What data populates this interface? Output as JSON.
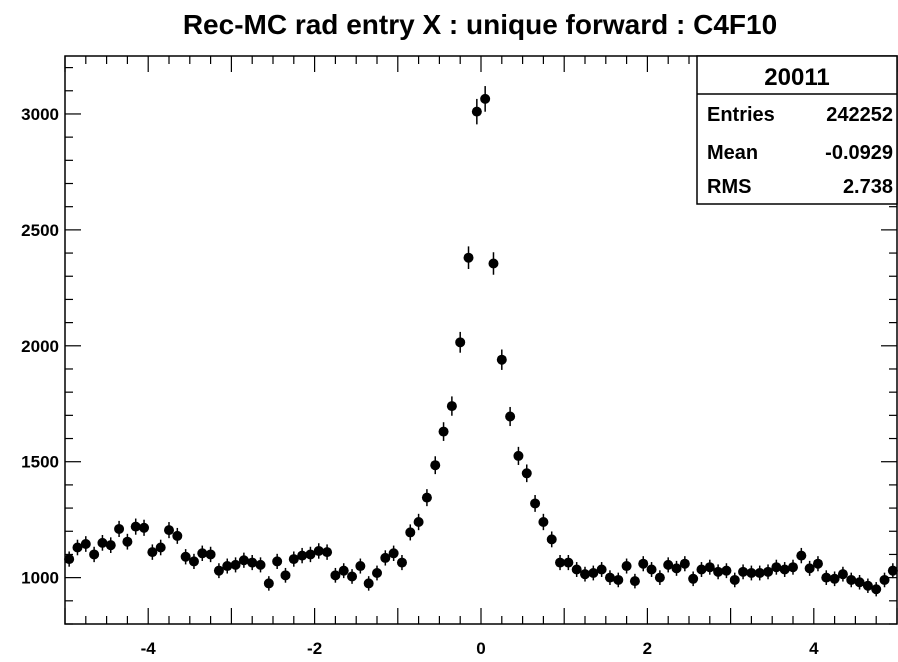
{
  "chart_data": {
    "type": "scatter",
    "title": "Rec-MC rad entry X : unique forward : C4F10",
    "xlabel": "",
    "ylabel": "",
    "xlim": [
      -5,
      5
    ],
    "ylim": [
      800,
      3250
    ],
    "x_ticks": [
      "-4",
      "-2",
      "0",
      "2",
      "4"
    ],
    "y_ticks": [
      "1000",
      "1500",
      "2000",
      "2500",
      "3000"
    ],
    "stats_box": {
      "name": "20011",
      "entries_label": "Entries",
      "entries_value": "242252",
      "mean_label": "Mean",
      "mean_value": "-0.0929",
      "rms_label": "RMS",
      "rms_value": "2.738"
    },
    "marker_color": "#000000",
    "series": [
      {
        "x": [
          -4.95,
          -4.85,
          -4.75,
          -4.65,
          -4.55,
          -4.45,
          -4.35,
          -4.25,
          -4.15,
          -4.05,
          -3.95,
          -3.85,
          -3.75,
          -3.65,
          -3.55,
          -3.45,
          -3.35,
          -3.25,
          -3.15,
          -3.05,
          -2.95,
          -2.85,
          -2.75,
          -2.65,
          -2.55,
          -2.45,
          -2.35,
          -2.25,
          -2.15,
          -2.05,
          -1.95,
          -1.85,
          -1.75,
          -1.65,
          -1.55,
          -1.45,
          -1.35,
          -1.25,
          -1.15,
          -1.05,
          -0.95,
          -0.85,
          -0.75,
          -0.65,
          -0.55,
          -0.45,
          -0.35,
          -0.25,
          -0.15,
          -0.05,
          0.05,
          0.15,
          0.25,
          0.35,
          0.45,
          0.55,
          0.65,
          0.75,
          0.85,
          0.95,
          1.05,
          1.15,
          1.25,
          1.35,
          1.45,
          1.55,
          1.65,
          1.75,
          1.85,
          1.95,
          2.05,
          2.15,
          2.25,
          2.35,
          2.45,
          2.55,
          2.65,
          2.75,
          2.85,
          2.95,
          3.05,
          3.15,
          3.25,
          3.35,
          3.45,
          3.55,
          3.65,
          3.75,
          3.85,
          3.95,
          4.05,
          4.15,
          4.25,
          4.35,
          4.45,
          4.55,
          4.65,
          4.75,
          4.85,
          4.95
        ],
        "y": [
          1080,
          1130,
          1145,
          1100,
          1150,
          1140,
          1210,
          1155,
          1220,
          1215,
          1110,
          1130,
          1205,
          1180,
          1090,
          1070,
          1105,
          1100,
          1030,
          1050,
          1055,
          1075,
          1065,
          1055,
          975,
          1070,
          1010,
          1080,
          1095,
          1100,
          1115,
          1110,
          1010,
          1030,
          1005,
          1050,
          975,
          1020,
          1085,
          1105,
          1065,
          1195,
          1240,
          1345,
          1485,
          1630,
          1740,
          2015,
          2380,
          3010,
          3065,
          2355,
          1940,
          1695,
          1525,
          1450,
          1320,
          1240,
          1165,
          1065,
          1065,
          1035,
          1015,
          1020,
          1035,
          1000,
          990,
          1050,
          985,
          1060,
          1035,
          1000,
          1055,
          1040,
          1060,
          995,
          1035,
          1045,
          1025,
          1030,
          990,
          1025,
          1020,
          1020,
          1025,
          1045,
          1035,
          1045,
          1095,
          1040,
          1060,
          1000,
          995,
          1015,
          990,
          980,
          965,
          950,
          990,
          1030
        ]
      }
    ]
  }
}
